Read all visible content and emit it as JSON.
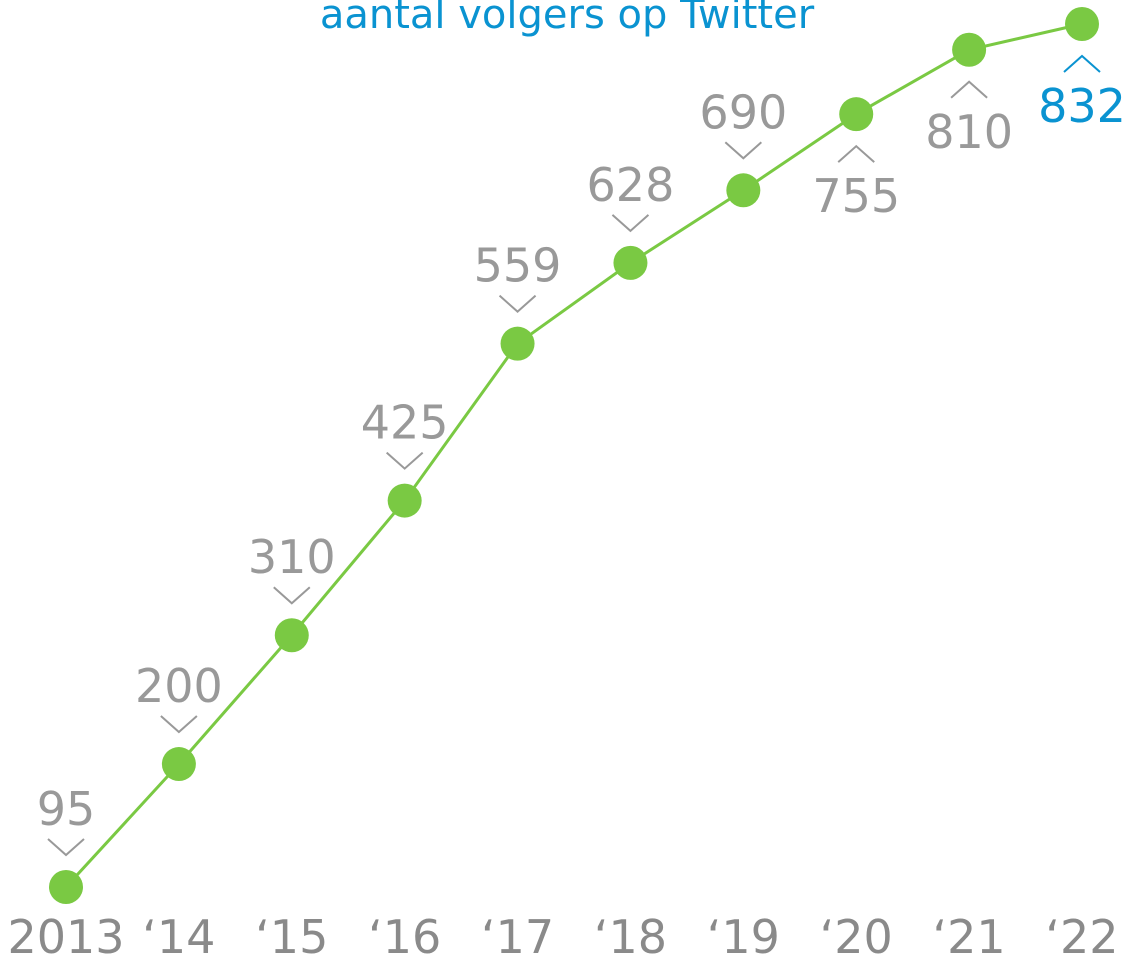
{
  "chart_data": {
    "type": "line",
    "title": "aantal volgers op Twitter",
    "categories": [
      "2013",
      "‘14",
      "‘15",
      "‘16",
      "‘17",
      "‘18",
      "‘19",
      "‘20",
      "‘21",
      "‘22"
    ],
    "values": [
      95,
      200,
      310,
      425,
      559,
      628,
      690,
      755,
      810,
      832
    ],
    "color": "#7ac943",
    "label_color": "#999999",
    "highlight_color": "#0a93d1",
    "title_color": "#0a93d1"
  }
}
